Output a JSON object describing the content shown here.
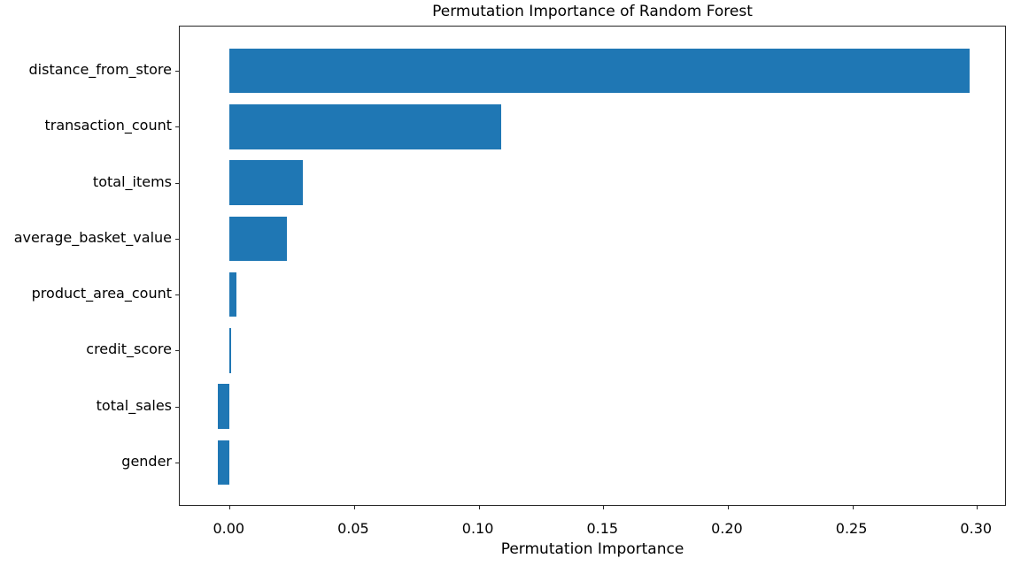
{
  "chart_data": {
    "type": "bar",
    "orientation": "horizontal",
    "title": "Permutation Importance of Random Forest",
    "xlabel": "Permutation Importance",
    "ylabel": "",
    "categories": [
      "distance_from_store",
      "transaction_count",
      "total_items",
      "average_basket_value",
      "product_area_count",
      "credit_score",
      "total_sales",
      "gender"
    ],
    "values": [
      0.297,
      0.109,
      0.0295,
      0.023,
      0.0026,
      0.0006,
      -0.0048,
      -0.0048
    ],
    "xlim": [
      -0.02,
      0.312
    ],
    "xticks": [
      0.0,
      0.05,
      0.1,
      0.15,
      0.2,
      0.25,
      0.3
    ],
    "xtick_labels": [
      "0.00",
      "0.05",
      "0.10",
      "0.15",
      "0.20",
      "0.25",
      "0.30"
    ],
    "bar_color": "#1f77b4",
    "spine_color": "#262626",
    "text_color": "#000000",
    "background": "#ffffff",
    "grid": false,
    "legend_position": "none"
  }
}
